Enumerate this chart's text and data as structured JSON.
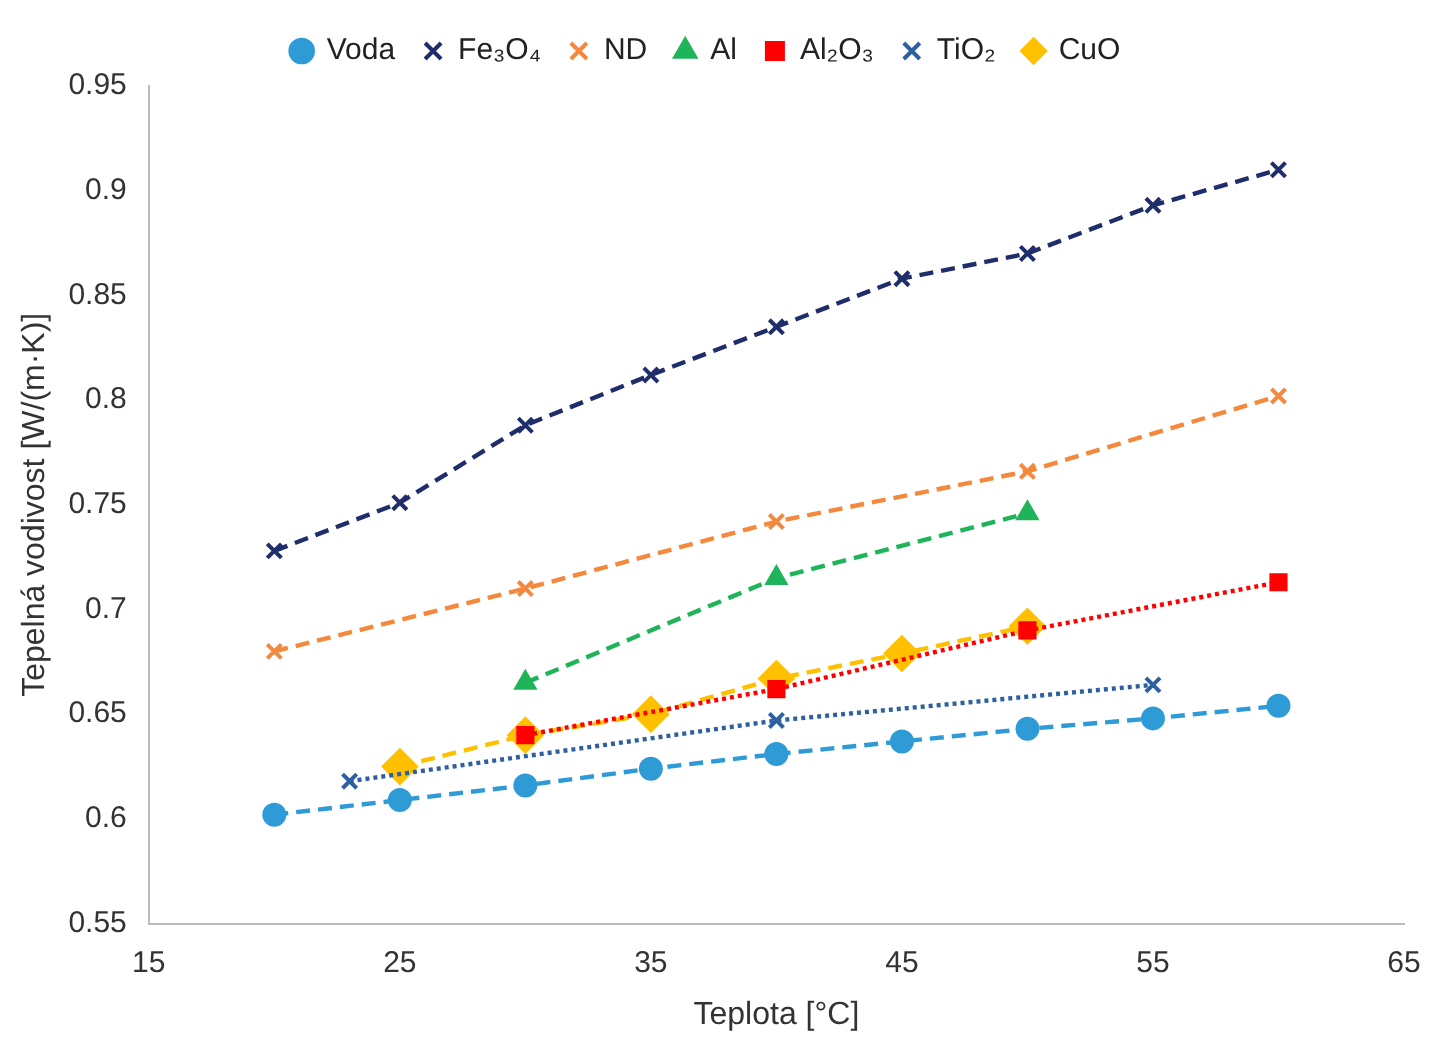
{
  "chart_data": {
    "type": "line",
    "xlabel": "Teplota [°C]",
    "ylabel": "Tepelná vodivost [W/(m·K)]",
    "xlim": [
      15,
      65
    ],
    "xticks": [
      15,
      25,
      35,
      45,
      55,
      65
    ],
    "ylim": [
      0.55,
      0.95
    ],
    "yticks": [
      0.55,
      0.6,
      0.65,
      0.7,
      0.75,
      0.8,
      0.85,
      0.9,
      0.95
    ],
    "grid": false,
    "legend": "top",
    "series": [
      {
        "name": "Voda",
        "color": "#2e9bd6",
        "marker": "circle",
        "line_style": "dashed",
        "x": [
          20,
          25,
          30,
          35,
          40,
          45,
          50,
          55,
          60
        ],
        "values": [
          0.602,
          0.609,
          0.616,
          0.624,
          0.631,
          0.637,
          0.643,
          0.648,
          0.654
        ]
      },
      {
        "name": "Fe₃O₄",
        "color": "#1f2d6b",
        "marker": "cross",
        "line_style": "dashed",
        "x": [
          20,
          25,
          30,
          35,
          40,
          45,
          50,
          55,
          60
        ],
        "values": [
          0.728,
          0.751,
          0.788,
          0.812,
          0.835,
          0.858,
          0.87,
          0.893,
          0.91
        ]
      },
      {
        "name": "ND",
        "color": "#f4883c",
        "marker": "cross",
        "line_style": "dashed",
        "x": [
          20,
          30,
          40,
          50,
          60
        ],
        "values": [
          0.68,
          0.71,
          0.742,
          0.766,
          0.802
        ]
      },
      {
        "name": "Al",
        "color": "#1fb45a",
        "marker": "triangle",
        "line_style": "dashed",
        "x": [
          30,
          40,
          50
        ],
        "values": [
          0.665,
          0.715,
          0.746
        ]
      },
      {
        "name": "Al₂O₃",
        "color": "#ff0000",
        "marker": "square",
        "line_style": "dotted",
        "x": [
          30,
          40,
          50,
          60
        ],
        "values": [
          0.64,
          0.662,
          0.69,
          0.713
        ]
      },
      {
        "name": "TiO₂",
        "color": "#2e5fa0",
        "marker": "cross",
        "line_style": "dotted",
        "x": [
          23,
          40,
          55
        ],
        "values": [
          0.618,
          0.647,
          0.664
        ]
      },
      {
        "name": "CuO",
        "color": "#ffc000",
        "marker": "diamond",
        "line_style": "dashed",
        "x": [
          25,
          30,
          35,
          40,
          45,
          50
        ],
        "values": [
          0.625,
          0.64,
          0.65,
          0.667,
          0.679,
          0.692
        ]
      }
    ]
  }
}
